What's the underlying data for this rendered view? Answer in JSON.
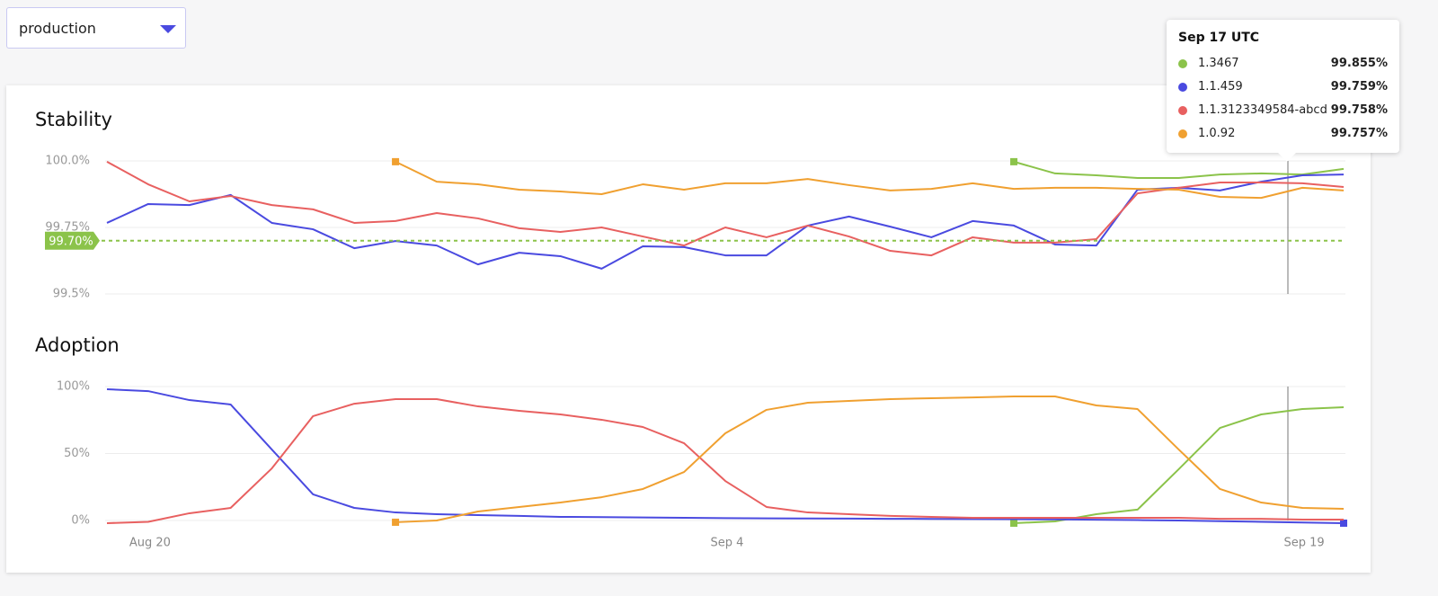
{
  "dropdown": {
    "label": "production"
  },
  "tooltip": {
    "title": "Sep 17 UTC",
    "values": [
      "99.855%",
      "99.759%",
      "99.758%",
      "99.757%"
    ]
  },
  "chart_data": [
    {
      "type": "line",
      "title": "Stability",
      "ylim": [
        99.5,
        100.0
      ],
      "yticks": [
        {
          "value": 99.5,
          "label": "99.5%"
        },
        {
          "value": 99.75,
          "label": "99.75%"
        },
        {
          "value": 100.0,
          "label": "100.0%"
        }
      ],
      "grid": true,
      "threshold": {
        "value": 99.7,
        "label": "99.70%",
        "color": "#8bc34a"
      },
      "series": [
        {
          "name": "1.3467",
          "color": "#8bc34a",
          "values": [
            null,
            null,
            null,
            null,
            null,
            null,
            null,
            null,
            null,
            null,
            null,
            null,
            null,
            null,
            null,
            null,
            null,
            null,
            null,
            null,
            null,
            null,
            99.997,
            99.953,
            99.946,
            99.936,
            99.936,
            99.949,
            99.953,
            99.949,
            99.97
          ]
        },
        {
          "name": "1.1.459",
          "color": "#4a4ae0",
          "values": [
            99.767,
            99.838,
            99.834,
            99.872,
            99.767,
            99.743,
            99.672,
            99.699,
            99.682,
            99.611,
            99.655,
            99.642,
            99.595,
            99.679,
            99.676,
            99.645,
            99.645,
            99.757,
            99.791,
            99.753,
            99.713,
            99.774,
            99.757,
            99.686,
            99.682,
            99.892,
            99.899,
            99.889,
            99.922,
            99.946,
            99.949
          ]
        },
        {
          "name": "1.1.3123349584-abcd",
          "color": "#e86060",
          "values": [
            99.997,
            99.912,
            99.848,
            99.868,
            99.834,
            99.818,
            99.767,
            99.774,
            99.804,
            99.784,
            99.747,
            99.733,
            99.75,
            99.716,
            99.682,
            99.75,
            99.713,
            99.757,
            99.716,
            99.662,
            99.645,
            99.713,
            99.693,
            99.693,
            99.706,
            99.878,
            99.899,
            99.919,
            99.919,
            99.916,
            99.902
          ]
        },
        {
          "name": "1.0.92",
          "color": "#f0a030",
          "values": [
            null,
            null,
            null,
            null,
            null,
            null,
            null,
            99.997,
            99.922,
            99.912,
            99.892,
            99.885,
            99.875,
            99.912,
            99.892,
            99.916,
            99.916,
            99.932,
            99.909,
            99.889,
            99.895,
            99.916,
            99.895,
            99.899,
            99.899,
            99.895,
            99.892,
            99.865,
            99.861,
            99.899,
            99.889
          ]
        }
      ]
    },
    {
      "type": "line",
      "title": "Adoption",
      "categories": [
        null,
        "Aug 20",
        null,
        null,
        null,
        null,
        null,
        null,
        null,
        null,
        null,
        null,
        null,
        null,
        null,
        "Sep 4",
        null,
        null,
        null,
        null,
        null,
        null,
        null,
        null,
        null,
        null,
        null,
        null,
        null,
        "Sep 19",
        null
      ],
      "ylim": [
        0,
        100
      ],
      "yticks": [
        {
          "value": 0,
          "label": "0%"
        },
        {
          "value": 50,
          "label": "50%"
        },
        {
          "value": 100,
          "label": "100%"
        }
      ],
      "grid": true,
      "series": [
        {
          "name": "1.3467",
          "color": "#8bc34a",
          "values": [
            null,
            null,
            null,
            null,
            null,
            null,
            null,
            null,
            null,
            null,
            null,
            null,
            null,
            null,
            null,
            null,
            null,
            null,
            null,
            null,
            null,
            null,
            -2,
            -0.7,
            4.7,
            8.1,
            38.3,
            69.1,
            79.2,
            83.2,
            84.6
          ]
        },
        {
          "name": "1.1.459",
          "color": "#4a4ae0",
          "values": [
            98,
            96.6,
            89.9,
            86.6,
            53,
            19.5,
            9.4,
            6,
            4.7,
            4,
            3.4,
            2.7,
            2.5,
            2.3,
            2,
            1.8,
            1.6,
            1.5,
            1.4,
            1.3,
            1.2,
            1.1,
            1,
            0.8,
            0.6,
            0.3,
            0,
            -0.5,
            -1,
            -1.5,
            -2
          ]
        },
        {
          "name": "1.1.3123349584-abcd",
          "color": "#e86060",
          "values": [
            -2,
            -1,
            5.4,
            9.4,
            38.9,
            77.9,
            87.2,
            90.6,
            90.6,
            85.2,
            81.9,
            79.2,
            75.2,
            69.8,
            57.7,
            29.5,
            10.1,
            6,
            4.7,
            3.4,
            2.7,
            2,
            2,
            2,
            2,
            2,
            2,
            1.3,
            1.3,
            0.7,
            0.7
          ]
        },
        {
          "name": "1.0.92",
          "color": "#f0a030",
          "values": [
            null,
            null,
            null,
            null,
            null,
            null,
            null,
            -1.3,
            0,
            6.7,
            10.1,
            13.4,
            17.4,
            23.5,
            36.2,
            65.1,
            82.6,
            87.9,
            89.3,
            90.6,
            91.3,
            91.9,
            92.6,
            92.6,
            85.9,
            83.2,
            53,
            23.5,
            13.4,
            9.4,
            8.7
          ]
        }
      ]
    }
  ]
}
